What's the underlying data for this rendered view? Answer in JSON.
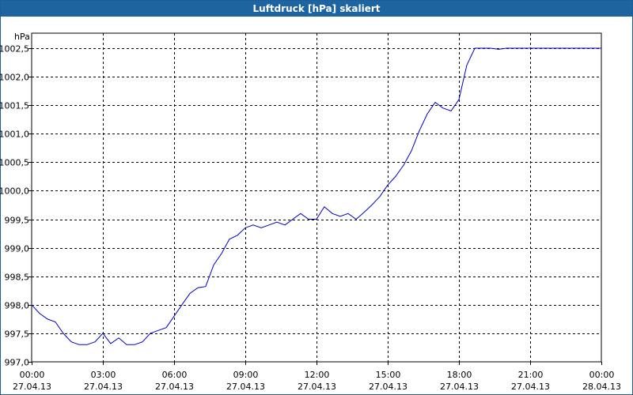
{
  "window": {
    "title": "Luftdruck [hPa] skaliert"
  },
  "chart_data": {
    "type": "line",
    "title": "Luftdruck [hPa] skaliert",
    "ylabel": "hPa",
    "ylim": [
      997.0,
      1002.75
    ],
    "yticks": [
      "997,0",
      "997,5",
      "998,0",
      "998,5",
      "999,0",
      "999,5",
      "1000,0",
      "1000,5",
      "1001,0",
      "1001,5",
      "1002,0",
      "1002,5"
    ],
    "xlim": [
      0,
      24
    ],
    "xticks": [
      {
        "time": "00:00",
        "date": "27.04.13"
      },
      {
        "time": "03:00",
        "date": "27.04.13"
      },
      {
        "time": "06:00",
        "date": "27.04.13"
      },
      {
        "time": "09:00",
        "date": "27.04.13"
      },
      {
        "time": "12:00",
        "date": "27.04.13"
      },
      {
        "time": "15:00",
        "date": "27.04.13"
      },
      {
        "time": "18:00",
        "date": "27.04.13"
      },
      {
        "time": "21:00",
        "date": "27.04.13"
      },
      {
        "time": "00:00",
        "date": "28.04.13"
      }
    ],
    "grid": true,
    "line_color": "#0000cc",
    "series": [
      {
        "x": [
          0,
          0.33,
          0.67,
          1,
          1.33,
          1.67,
          2,
          2.33,
          2.67,
          3,
          3.33,
          3.67,
          4,
          4.33,
          4.67,
          5,
          5.33,
          5.67,
          6,
          6.33,
          6.67,
          7,
          7.33,
          7.67,
          8,
          8.33,
          8.67,
          9,
          9.33,
          9.67,
          10,
          10.33,
          10.67,
          11,
          11.33,
          11.67,
          12,
          12.33,
          12.67,
          13,
          13.33,
          13.67,
          14,
          14.33,
          14.67,
          15,
          15.33,
          15.67,
          16,
          16.33,
          16.67,
          17,
          17.33,
          17.67,
          18,
          18.33,
          18.67,
          19,
          19.33,
          19.67,
          20,
          20.33,
          20.67,
          21,
          21.33,
          21.67,
          22,
          22.33,
          22.67,
          23,
          23.33,
          23.67,
          24
        ],
        "y": [
          998.0,
          997.85,
          997.75,
          997.7,
          997.5,
          997.35,
          997.3,
          997.3,
          997.35,
          997.5,
          997.32,
          997.42,
          997.3,
          997.3,
          997.35,
          997.5,
          997.55,
          997.6,
          997.8,
          998.0,
          998.2,
          998.3,
          998.32,
          998.7,
          998.9,
          999.15,
          999.22,
          999.35,
          999.4,
          999.35,
          999.4,
          999.45,
          999.4,
          999.5,
          999.6,
          999.5,
          999.5,
          999.72,
          999.6,
          999.55,
          999.6,
          999.5,
          999.62,
          999.75,
          999.9,
          1000.1,
          1000.25,
          1000.45,
          1000.7,
          1001.05,
          1001.35,
          1001.55,
          1001.45,
          1001.4,
          1001.6,
          1002.2,
          1002.5,
          1002.5,
          1002.5,
          1002.48,
          1002.5,
          1002.5,
          1002.5,
          1002.5,
          1002.5,
          1002.5,
          1002.5,
          1002.5,
          1002.5,
          1002.5,
          1002.5,
          1002.5,
          1002.5
        ]
      }
    ]
  }
}
